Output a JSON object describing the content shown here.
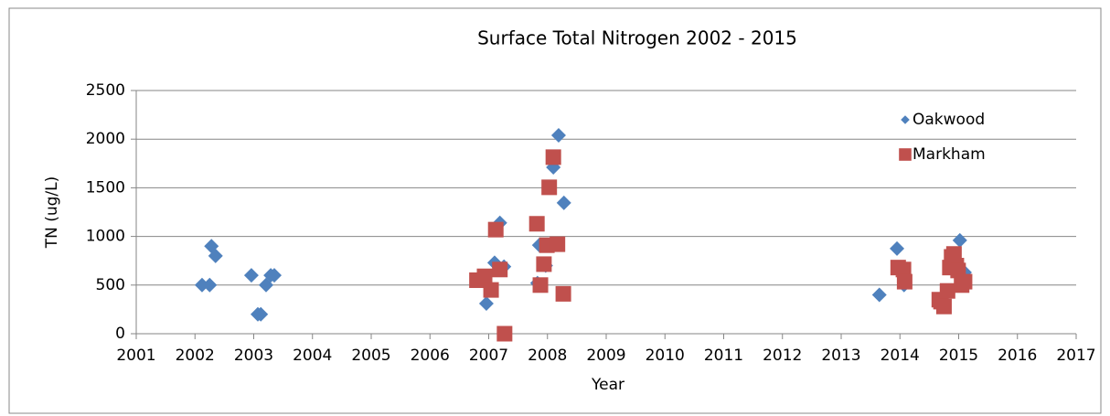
{
  "chart_data": {
    "type": "scatter",
    "title": "Surface Total Nitrogen 2002 - 2015",
    "x_label": "Year",
    "y_label": "TN (ug/L)",
    "xlim": [
      2001,
      2017
    ],
    "xticks": [
      2001,
      2002,
      2003,
      2004,
      2005,
      2006,
      2007,
      2008,
      2009,
      2010,
      2011,
      2012,
      2013,
      2014,
      2015,
      2016,
      2017
    ],
    "ylim": [
      0,
      2500
    ],
    "yticks": [
      0,
      500,
      1000,
      1500,
      2000,
      2500
    ],
    "grid": true,
    "legend": "upper right",
    "series": [
      {
        "name": "Oakwood",
        "color": "#4f81bd",
        "marker": "diamond",
        "x": [
          2002.12,
          2002.25,
          2002.28,
          2002.35,
          2002.96,
          2003.07,
          2003.12,
          2003.21,
          2003.29,
          2003.35,
          2006.96,
          2007.1,
          2007.19,
          2007.26,
          2007.83,
          2007.86,
          2007.97,
          2008.1,
          2008.19,
          2008.28,
          2013.65,
          2013.95,
          2014.07,
          2015.02,
          2015.1
        ],
        "values": [
          500,
          500,
          900,
          800,
          600,
          200,
          200,
          500,
          600,
          600,
          310,
          730,
          1140,
          690,
          520,
          910,
          700,
          1710,
          2040,
          1345,
          400,
          875,
          500,
          960,
          630
        ]
      },
      {
        "name": "Markham",
        "color": "#c0504d",
        "marker": "square",
        "x": [
          2006.8,
          2006.93,
          2007.04,
          2007.12,
          2007.19,
          2007.27,
          2007.82,
          2007.88,
          2007.94,
          2007.99,
          2008.03,
          2008.1,
          2008.17,
          2008.27,
          2013.97,
          2014.06,
          2014.08,
          2014.67,
          2014.7,
          2014.75,
          2014.81,
          2014.85,
          2014.88,
          2014.92,
          2014.96,
          2014.99,
          2015.05,
          2015.1
        ],
        "values": [
          550,
          590,
          450,
          1070,
          660,
          0,
          1130,
          500,
          715,
          910,
          1505,
          1815,
          920,
          410,
          680,
          660,
          535,
          350,
          330,
          280,
          440,
          680,
          790,
          820,
          700,
          650,
          500,
          535
        ]
      }
    ]
  }
}
